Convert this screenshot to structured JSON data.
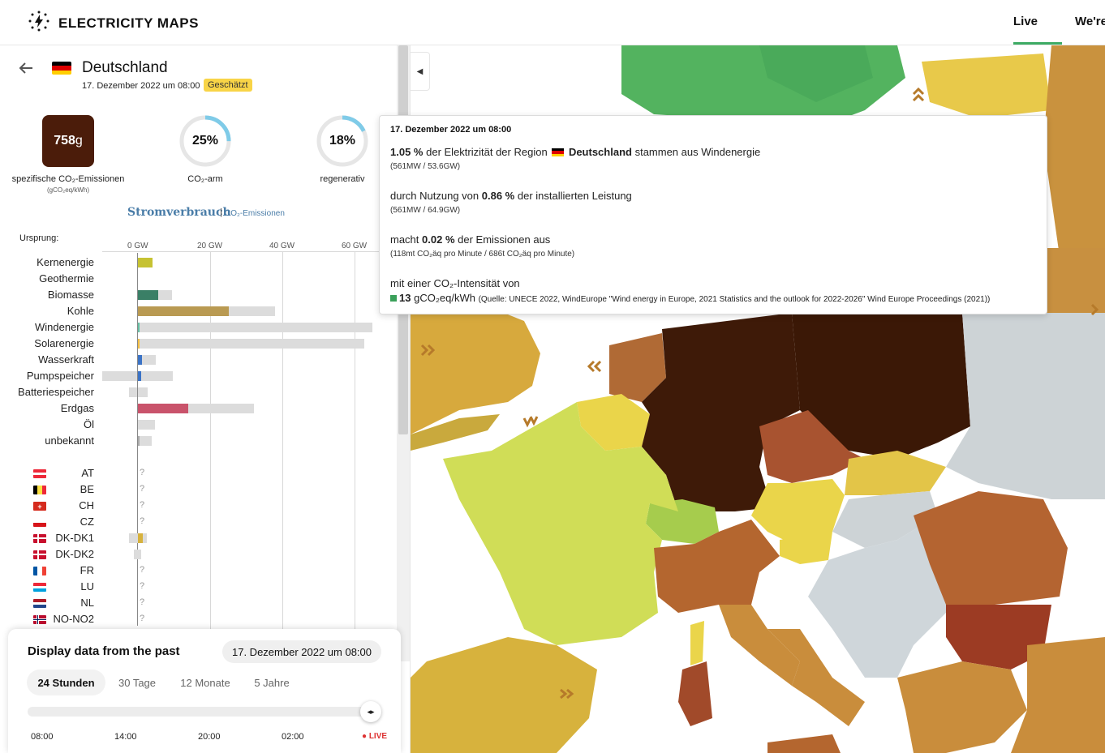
{
  "header": {
    "logo_text": "ELECTRICITY MAPS",
    "nav_live": "Live",
    "nav_were": "We're"
  },
  "zone": {
    "name": "Deutschland",
    "datetime": "17. Dezember 2022 um 08:00",
    "badge": "Geschätzt"
  },
  "metrics": {
    "co2_value": "758",
    "co2_unit": "g",
    "co2_label": "spezifische CO₂-Emissionen",
    "co2_sub": "(gCO₂eq/kWh)",
    "low_carbon_value": "25%",
    "low_carbon_label": "CO₂-arm",
    "low_carbon_fraction": 0.25,
    "renewable_value": "18%",
    "renewable_label": "regenerativ",
    "renewable_fraction": 0.18
  },
  "tabs": {
    "active": "Stromverbrauch",
    "separator": "|",
    "inactive": "CO₂-Emissionen"
  },
  "breakdown": {
    "origin_label": "Ursprung:",
    "axis_ticks": [
      "0 GW",
      "20 GW",
      "40 GW",
      "60 GW"
    ],
    "sources": [
      {
        "label": "Kernenergie",
        "capacity_gw": 4.1,
        "production_gw": 4.0,
        "color": "#c6c232"
      },
      {
        "label": "Geothermie",
        "capacity_gw": 0,
        "production_gw": 0,
        "color": "#c7a33b"
      },
      {
        "label": "Biomasse",
        "capacity_gw": 9.5,
        "production_gw": 5.6,
        "color": "#3a7f66"
      },
      {
        "label": "Kohle",
        "capacity_gw": 38,
        "production_gw": 25,
        "color": "#b99a52"
      },
      {
        "label": "Windenergie",
        "capacity_gw": 64.9,
        "production_gw": 0.56,
        "color": "#65c0a4"
      },
      {
        "label": "Solarenergie",
        "capacity_gw": 62.5,
        "production_gw": 0.3,
        "color": "#f5bf41"
      },
      {
        "label": "Wasserkraft",
        "capacity_gw": 5,
        "production_gw": 1.1,
        "color": "#3b73c6"
      },
      {
        "label": "Pumpspeicher",
        "capacity_gw": 9.7,
        "production_gw": 1.0,
        "color": "#3b73c6"
      },
      {
        "label": "Batteriespeicher",
        "capacity_gw": 2.6,
        "production_gw": 0,
        "color": "#3b73c6"
      },
      {
        "label": "Erdgas",
        "capacity_gw": 32,
        "production_gw": 14,
        "color": "#c9536b"
      },
      {
        "label": "Öl",
        "capacity_gw": 4.8,
        "production_gw": 0,
        "color": "#8a5a3c"
      },
      {
        "label": "unbekannt",
        "capacity_gw": 3.7,
        "production_gw": 0.4,
        "color": "#aaaaaa"
      }
    ],
    "exchanges": [
      {
        "label": "AT",
        "value": "?"
      },
      {
        "label": "BE",
        "value": "?"
      },
      {
        "label": "CH",
        "value": "?"
      },
      {
        "label": "CZ",
        "value": "?"
      },
      {
        "label": "DK-DK1",
        "value": ""
      },
      {
        "label": "DK-DK2",
        "value": ""
      },
      {
        "label": "FR",
        "value": "?"
      },
      {
        "label": "LU",
        "value": "?"
      },
      {
        "label": "NL",
        "value": "?"
      },
      {
        "label": "NO-NO2",
        "value": "?"
      }
    ]
  },
  "tooltip": {
    "date": "17. Dezember 2022 um 08:00",
    "line1_pct": "1.05 %",
    "line1_pre": "der Elektrizität der Region",
    "line1_zone": "Deutschland",
    "line1_post": "stammen aus Windenergie",
    "line1_sub": "(561MW / 53.6GW)",
    "line2_pre": "durch Nutzung von",
    "line2_pct": "0.86 %",
    "line2_post": "der installierten Leistung",
    "line2_sub": "(561MW / 64.9GW)",
    "line3_pre": "macht",
    "line3_pct": "0.02 %",
    "line3_post": "der Emissionen aus",
    "line3_sub": "(118mt CO₂äq pro Minute / 686t CO₂äq pro Minute)",
    "line4": "mit einer CO₂-Intensität von",
    "line4_value": "13",
    "line4_unit": "gCO₂eq/kWh",
    "line4_source": "(Quelle: UNECE 2022, WindEurope \"Wind energy in Europe, 2021 Statistics and the outlook for 2022-2026\" Wind Europe Proceedings (2021))"
  },
  "time_controller": {
    "title": "Display data from the past",
    "selected_date": "17. Dezember 2022 um 08:00",
    "tabs": [
      "24 Stunden",
      "30 Tage",
      "12 Monate",
      "5 Jahre"
    ],
    "ticks": [
      "08:00",
      "14:00",
      "20:00",
      "02:00"
    ],
    "live_label": "LIVE"
  }
}
